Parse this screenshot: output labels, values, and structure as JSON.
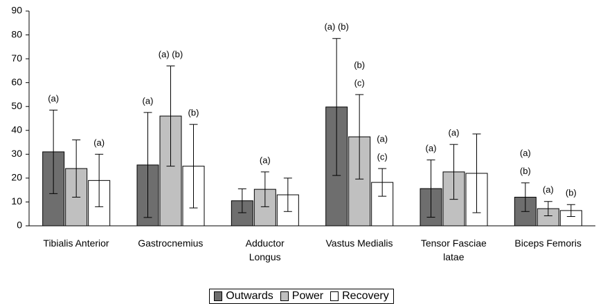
{
  "chart_data": {
    "type": "bar",
    "categories": [
      "Tibialis Anterior",
      "Gastrocnemius",
      "Adductor\nLongus",
      "Vastus Medialis",
      "Tensor Fasciae\nlatae",
      "Biceps Femoris"
    ],
    "series": [
      {
        "name": "Outwards",
        "color": "#6e6e6e",
        "values": [
          31,
          25.5,
          10.5,
          49.8,
          15.6,
          12
        ],
        "errors": [
          17.5,
          22,
          5,
          28.7,
          12,
          6
        ],
        "annotations": [
          [
            "(a)"
          ],
          [
            "(a)"
          ],
          null,
          [
            "(a) (b)"
          ],
          [
            "(a)"
          ],
          [
            "(a)",
            "(b)"
          ]
        ]
      },
      {
        "name": "Power",
        "color": "#c0c0c0",
        "values": [
          24,
          46,
          15.3,
          37.3,
          22.6,
          7.2
        ],
        "errors": [
          12,
          21,
          7.3,
          17.7,
          11.5,
          3
        ],
        "annotations": [
          null,
          [
            "(a) (b)"
          ],
          [
            "(a)"
          ],
          [
            "(b)",
            "(c)"
          ],
          [
            "(a)"
          ],
          [
            "(a)"
          ]
        ]
      },
      {
        "name": "Recovery",
        "color": "#ffffff",
        "values": [
          19,
          25,
          13,
          18.2,
          22,
          6.4
        ],
        "errors": [
          11,
          17.5,
          7,
          5.8,
          16.5,
          2.5
        ],
        "annotations": [
          [
            "(a)"
          ],
          [
            "(b)"
          ],
          null,
          [
            "(a)",
            "(c)"
          ],
          null,
          [
            "(b)"
          ]
        ]
      }
    ],
    "ylim": [
      0,
      90
    ],
    "yticks": [
      0,
      10,
      20,
      30,
      40,
      50,
      60,
      70,
      80,
      90
    ],
    "grid": false,
    "legend": "bottom"
  }
}
